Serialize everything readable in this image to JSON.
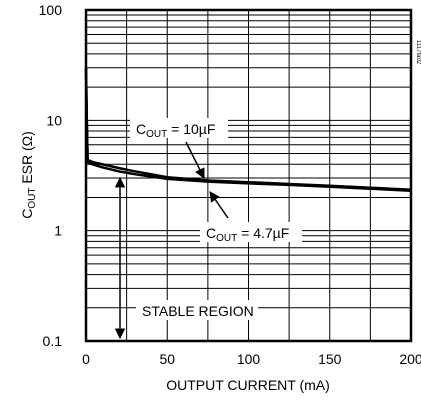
{
  "chart_data": {
    "type": "line",
    "title": "",
    "xlabel": "OUTPUT CURRENT (mA)",
    "ylabel": {
      "main": "C",
      "sub": "OUT",
      "rest": " ESR (Ω)"
    },
    "x_scale": "linear",
    "y_scale": "log",
    "xlim": [
      0,
      200
    ],
    "ylim": [
      0.1,
      100
    ],
    "x_ticks": [
      "0",
      "50",
      "100",
      "150",
      "200"
    ],
    "y_ticks": [
      "0.1",
      "1",
      "10",
      "100"
    ],
    "grid": true,
    "series": [
      {
        "name": {
          "main": "C",
          "sub": "OUT",
          "rest": " = 10µF"
        },
        "x": [
          0,
          0.5,
          1,
          2,
          5,
          10,
          20,
          30,
          50,
          75,
          100,
          125,
          150,
          175,
          200
        ],
        "y": [
          30,
          10,
          4.4,
          4.3,
          4.15,
          4.0,
          3.7,
          3.45,
          3.05,
          2.85,
          2.75,
          2.65,
          2.55,
          2.45,
          2.35
        ]
      },
      {
        "name": {
          "main": "C",
          "sub": "OUT",
          "rest": " = 4.7µF"
        },
        "x": [
          0,
          0.5,
          1,
          2,
          5,
          10,
          20,
          30,
          50,
          75,
          100,
          125,
          150,
          175,
          200
        ],
        "y": [
          30,
          10,
          4.2,
          4.1,
          3.95,
          3.75,
          3.45,
          3.25,
          2.95,
          2.78,
          2.68,
          2.6,
          2.5,
          2.4,
          2.3
        ]
      }
    ],
    "annotations": {
      "stable_region": "STABLE REGION"
    },
    "watermark": "1117fa02"
  }
}
